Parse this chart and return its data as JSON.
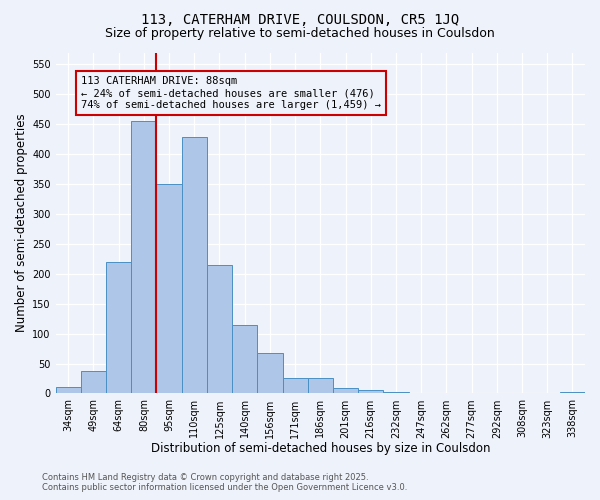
{
  "title": "113, CATERHAM DRIVE, COULSDON, CR5 1JQ",
  "subtitle": "Size of property relative to semi-detached houses in Coulsdon",
  "xlabel": "Distribution of semi-detached houses by size in Coulsdon",
  "ylabel": "Number of semi-detached properties",
  "categories": [
    "34sqm",
    "49sqm",
    "64sqm",
    "80sqm",
    "95sqm",
    "110sqm",
    "125sqm",
    "140sqm",
    "156sqm",
    "171sqm",
    "186sqm",
    "201sqm",
    "216sqm",
    "232sqm",
    "247sqm",
    "262sqm",
    "277sqm",
    "292sqm",
    "308sqm",
    "323sqm",
    "338sqm"
  ],
  "values": [
    10,
    38,
    220,
    456,
    350,
    428,
    214,
    115,
    68,
    26,
    26,
    9,
    5,
    3,
    1,
    0,
    0,
    0,
    0,
    0,
    3
  ],
  "bar_color": "#aec6e8",
  "bar_edge_color": "#4a90c4",
  "property_line_index": 3.5,
  "pct_smaller": 24,
  "n_smaller": 476,
  "pct_larger": 74,
  "n_larger": 1459,
  "annotation_box_color": "#cc0000",
  "ylim": [
    0,
    570
  ],
  "yticks": [
    0,
    50,
    100,
    150,
    200,
    250,
    300,
    350,
    400,
    450,
    500,
    550
  ],
  "footer_line1": "Contains HM Land Registry data © Crown copyright and database right 2025.",
  "footer_line2": "Contains public sector information licensed under the Open Government Licence v3.0.",
  "bg_color": "#eef2fa",
  "grid_color": "#ffffff",
  "title_fontsize": 10,
  "subtitle_fontsize": 9,
  "axis_label_fontsize": 8.5,
  "tick_fontsize": 7,
  "annotation_fontsize": 7.5
}
